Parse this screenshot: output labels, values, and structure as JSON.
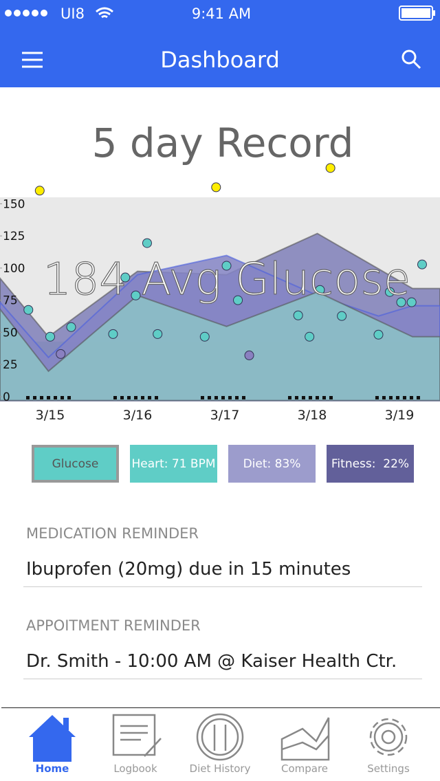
{
  "status_bar": {
    "carrier": "UI8",
    "time": "9:41 AM"
  },
  "nav": {
    "title": "Dashboard"
  },
  "chart": {
    "type": "area",
    "title": "5 day Record",
    "overlay": "184 Avg Glucose",
    "categories": [
      "3/15",
      "3/16",
      "3/17",
      "3/18",
      "3/19"
    ],
    "xlim": [
      -0.575,
      4.465
    ],
    "ylim": [
      -3,
      155
    ],
    "yticks": [
      0,
      25,
      50,
      75,
      100,
      125,
      150
    ],
    "areas": [
      {
        "color": "#9fc9cc",
        "x": [
          -0.575,
          4.465
        ],
        "values": [
          42.8,
          42.8
        ]
      },
      {
        "color": "#7f7fb8",
        "x": [
          -0.575,
          -0.02,
          1,
          2.02,
          3.06,
          4.15,
          4.465
        ],
        "values": [
          92.1,
          46.6,
          97.5,
          94.8,
          126.9,
          84.1,
          84.1
        ]
      },
      {
        "color": "#8585c6",
        "x": [
          -0.575,
          -0.02,
          1,
          2.02,
          3.06,
          3.76,
          4.15,
          4.465
        ],
        "values": [
          73.4,
          30.5,
          94.8,
          109.8,
          78.7,
          62.7,
          70.7,
          70.7
        ]
      },
      {
        "color": "#8cc3c6",
        "x": [
          -0.575,
          -0.02,
          1,
          2.02,
          3.06,
          4.15,
          4.465
        ],
        "values": [
          68,
          19.8,
          78.7,
          54.6,
          81.4,
          46.6,
          46.6
        ]
      }
    ],
    "points": [
      {
        "color": "#5fcdc6",
        "x": [
          -0.25,
          0,
          0.24,
          0.72,
          0.86,
          0.98,
          1.11,
          1.23,
          1.77,
          2.02,
          2.15,
          2.84,
          2.97,
          3.09,
          3.34,
          3.76,
          3.89,
          4.02,
          4.14,
          4.26
        ],
        "values": [
          67.5,
          46.6,
          54.1,
          48.7,
          92.7,
          78.7,
          119.4,
          48.7,
          46.6,
          101.8,
          75,
          63.2,
          46.6,
          83,
          62.7,
          48.2,
          81.4,
          73.4,
          73.4,
          102.8
        ]
      },
      {
        "color": "#8a80c0",
        "x": [
          0.12,
          2.28
        ],
        "values": [
          33.2,
          32.1
        ]
      },
      {
        "color": "#ffee00",
        "x": [
          -0.12,
          1.9,
          3.21
        ],
        "values": [
          160.2,
          162.8,
          177.8
        ]
      }
    ]
  },
  "legend": [
    {
      "label": "Glucose",
      "color": "#5fcdc6"
    },
    {
      "label": "Heart: 71 BPM",
      "color": "#5fcdc6"
    },
    {
      "label": "Diet: 83%",
      "color": "#9c9ccc"
    },
    {
      "label": "Fitness:  22%",
      "color": "#62609a"
    }
  ],
  "reminders": [
    {
      "heading": "MEDICATION REMINDER",
      "text": "Ibuprofen (20mg) due in 15 minutes"
    },
    {
      "heading": "APPOITMENT REMINDER",
      "text": "Dr. Smith - 10:00 AM @ Kaiser Health Ctr."
    }
  ],
  "tabs": [
    "Home",
    "Logbook",
    "Diet History",
    "Compare",
    "Settings"
  ]
}
